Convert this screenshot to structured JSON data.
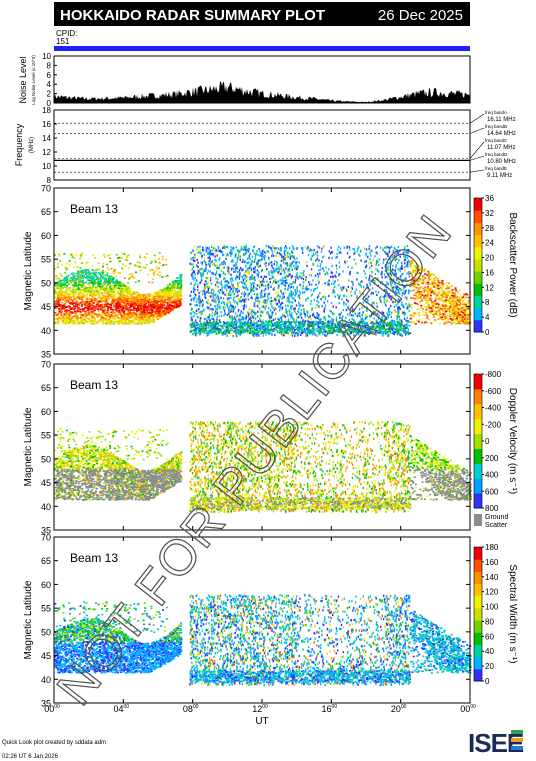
{
  "header": {
    "title": "HOKKAIDO RADAR SUMMARY PLOT",
    "date": "26 Dec 2025",
    "cpid_label": "CPID:",
    "cpid_value": "151"
  },
  "colors": {
    "header_bg": "#000000",
    "cpid_bar": "#2020ff",
    "ground_scatter": "#8c8c8c"
  },
  "watermark": "NOT FOR PUBLICATION",
  "x_axis": {
    "label": "UT",
    "ticks": [
      {
        "h": "00",
        "m": "00",
        "value": 0
      },
      {
        "h": "04",
        "m": "00",
        "value": 4
      },
      {
        "h": "08",
        "m": "00",
        "value": 8
      },
      {
        "h": "12",
        "m": "00",
        "value": 12
      },
      {
        "h": "16",
        "m": "00",
        "value": 16
      },
      {
        "h": "20",
        "m": "00",
        "value": 20
      },
      {
        "h": "00",
        "m": "00",
        "value": 24
      }
    ],
    "range": [
      0,
      24
    ]
  },
  "noise_panel": {
    "ylabel": "Noise Level",
    "ylabel_sub": "Log Noise Level (x 10^3)",
    "ylim": [
      0,
      10
    ],
    "ticks": [
      "0",
      "2",
      "4",
      "6",
      "8",
      "10"
    ],
    "tick_values": [
      0,
      2,
      4,
      6,
      8,
      10
    ]
  },
  "frequency_panel": {
    "ylabel": "Frequency",
    "ylabel_unit": "(MHz)",
    "ylim": [
      8,
      18
    ],
    "ticks": [
      "8",
      "10",
      "12",
      "14",
      "16",
      "18"
    ],
    "tick_values": [
      8,
      10,
      12,
      14,
      16,
      18
    ],
    "bands": [
      {
        "label": "freq bandA",
        "freq": "16.11 MHz",
        "value": 16.11
      },
      {
        "label": "freq bandB",
        "freq": "14.64 MHz",
        "value": 14.64
      },
      {
        "label": "freq bandC",
        "freq": "11.07 MHz",
        "value": 11.07
      },
      {
        "label": "freq bandD",
        "freq": "10.80 MHz",
        "value": 10.8
      },
      {
        "label": "freq bandE",
        "freq": "9.11 MHz",
        "value": 9.11
      }
    ]
  },
  "panels": [
    {
      "id": "power",
      "beam_label": "Beam 13",
      "ylabel": "Magnetic Latitude",
      "yticks": [
        "35",
        "40",
        "45",
        "50",
        "55",
        "60",
        "65",
        "70"
      ],
      "ylim": [
        35,
        70
      ],
      "colorbar_title": "Backscatter Power (dB)",
      "colorbar_ticks": [
        "0",
        "4",
        "8",
        "12",
        "16",
        "20",
        "24",
        "28",
        "32",
        "36"
      ],
      "colorbar_range": [
        0,
        36
      ],
      "palette": [
        "#3030ff",
        "#00b4ff",
        "#00d2a0",
        "#00c000",
        "#70d000",
        "#c8e000",
        "#f0f000",
        "#ffc000",
        "#ff9000",
        "#ff5000",
        "#f00000"
      ]
    },
    {
      "id": "velocity",
      "beam_label": "Beam 13",
      "ylabel": "Magnetic Latitude",
      "yticks": [
        "35",
        "40",
        "45",
        "50",
        "55",
        "60",
        "65",
        "70"
      ],
      "ylim": [
        35,
        70
      ],
      "colorbar_title": "Doppler Velocity (m s⁻¹)",
      "colorbar_ticks": [
        "800",
        "600",
        "400",
        "200",
        "0",
        "-200",
        "-400",
        "-600",
        "-800"
      ],
      "colorbar_range": [
        -800,
        800
      ],
      "ground_scatter_label": [
        "Ground",
        "Scatter"
      ],
      "palette": [
        "#3030ff",
        "#00a0ff",
        "#00d0d0",
        "#00c000",
        "#a0e000",
        "#f0f000",
        "#ffc000",
        "#ff8000",
        "#f00000"
      ]
    },
    {
      "id": "width",
      "beam_label": "Beam 13",
      "ylabel": "Magnetic Latitude",
      "yticks": [
        "35",
        "40",
        "45",
        "50",
        "55",
        "60",
        "65",
        "70"
      ],
      "ylim": [
        35,
        70
      ],
      "colorbar_title": "Spectral Width (m s⁻¹)",
      "colorbar_ticks": [
        "0",
        "20",
        "40",
        "60",
        "80",
        "100",
        "120",
        "140",
        "160",
        "180"
      ],
      "colorbar_range": [
        0,
        180
      ],
      "palette": [
        "#3030ff",
        "#00b4ff",
        "#00d2a0",
        "#00c000",
        "#70d000",
        "#c8e000",
        "#f0f000",
        "#ffc000",
        "#ff9000",
        "#ff5000",
        "#f00000"
      ]
    }
  ],
  "footer": {
    "created": "Quick Look plot created by sddata adm",
    "timestamp": "02:26 UT 6 Jan 2026",
    "logo": "ISEE"
  },
  "chart_data": {
    "type": "heatmap",
    "title": "HOKKAIDO RADAR SUMMARY PLOT",
    "date": "26 Dec 2025",
    "xlabel": "UT",
    "xlim": [
      0,
      24
    ],
    "ylabel": "Magnetic Latitude",
    "ylim": [
      35,
      70
    ],
    "noise_level_profile": {
      "x": [
        0,
        1,
        2,
        3,
        4,
        5,
        6,
        7,
        8,
        9,
        10,
        11,
        12,
        13,
        14,
        15,
        16,
        17,
        18,
        19,
        20,
        21,
        22,
        23,
        24
      ],
      "y": [
        1.4,
        1.1,
        0.9,
        1.0,
        1.1,
        1.4,
        1.6,
        1.9,
        2.4,
        2.8,
        3.4,
        2.6,
        2.0,
        1.6,
        1.2,
        0.9,
        0.5,
        0.3,
        0.2,
        0.6,
        1.3,
        2.0,
        2.3,
        2.0,
        1.8
      ]
    },
    "frequency_bands_mhz": [
      16.11,
      14.64,
      11.07,
      10.8,
      9.11
    ],
    "frequency_trace_mhz": 10.8,
    "scatter_regions": [
      {
        "desc": "evening",
        "x": [
          0,
          7.2
        ],
        "lat": [
          41,
          52
        ]
      },
      {
        "desc": "ionospheric",
        "x": [
          7.8,
          20.5
        ],
        "lat": [
          39,
          58
        ]
      },
      {
        "desc": "morning",
        "x": [
          20.5,
          24
        ],
        "lat": [
          41,
          50
        ]
      }
    ]
  }
}
